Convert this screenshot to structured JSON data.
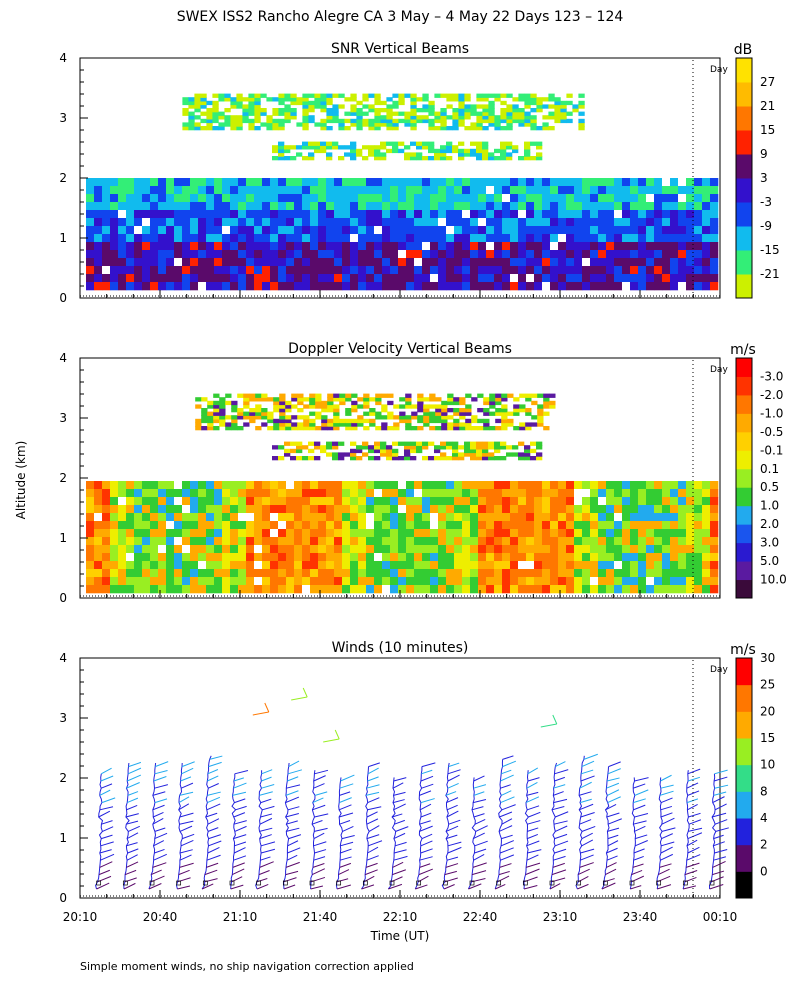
{
  "page": {
    "title": "SWEX ISS2 Rancho Alegre CA    3 May –   4 May 22 Days 123 – 124",
    "footnote": "Simple moment winds, no ship navigation correction applied",
    "day_marker_label": "Day"
  },
  "chart_data": [
    {
      "type": "heatmap",
      "title": "SNR Vertical Beams",
      "xlabel": "",
      "ylabel": "",
      "ylim": [
        0,
        4
      ],
      "y_ticks": [
        "0",
        "1",
        "2",
        "3",
        "4"
      ],
      "colorbar_unit": "dB",
      "colorbar_labels": [
        "-21",
        "-15",
        "-9",
        "-3",
        "3",
        "9",
        "15",
        "21",
        "27"
      ],
      "colorbar_colors": [
        "#ccf000",
        "#33ee77",
        "#11bbee",
        "#1144ee",
        "#3311cc",
        "#5a0a6a",
        "#ff2200",
        "#ff7700",
        "#ffbb00",
        "#ffe200"
      ],
      "layers": [
        {
          "altitude_km": [
            0.1,
            1.0
          ],
          "level": "strong"
        },
        {
          "altitude_km": [
            1.0,
            1.9
          ],
          "level": "moderate"
        },
        {
          "altitude_km": [
            2.3,
            2.6
          ],
          "level": "weak"
        },
        {
          "altitude_km": [
            2.8,
            3.4
          ],
          "level": "weak"
        }
      ]
    },
    {
      "type": "heatmap",
      "title": "Doppler Velocity Vertical Beams",
      "xlabel": "",
      "ylabel": "Altitude (km)",
      "ylim": [
        0,
        4
      ],
      "y_ticks": [
        "0",
        "1",
        "2",
        "3",
        "4"
      ],
      "colorbar_unit": "m/s",
      "colorbar_labels": [
        "10.0",
        "5.0",
        "3.0",
        "2.0",
        "1.0",
        "0.5",
        "0.1",
        "-0.1",
        "-0.5",
        "-1.0",
        "-2.0",
        "-3.0"
      ],
      "colorbar_colors": [
        "#3a0a3a",
        "#5a1aa0",
        "#2a1ad0",
        "#1a55ee",
        "#22aaee",
        "#33cc33",
        "#99ee22",
        "#eeee00",
        "#ffd000",
        "#ffaa00",
        "#ff7700",
        "#ff3300",
        "#ff0000"
      ]
    },
    {
      "type": "scatter",
      "title": "Winds (10 minutes)",
      "xlabel": "Time (UT)",
      "ylabel": "",
      "ylim": [
        0,
        4
      ],
      "y_ticks": [
        "0",
        "1",
        "2",
        "3",
        "4"
      ],
      "x_ticks": [
        "20:10",
        "20:40",
        "21:10",
        "21:40",
        "22:10",
        "22:40",
        "23:10",
        "23:40",
        "00:10"
      ],
      "colorbar_unit": "m/s",
      "colorbar_labels": [
        "0",
        "2",
        "4",
        "8",
        "10",
        "15",
        "20",
        "25",
        "30"
      ],
      "colorbar_colors": [
        "#000000",
        "#5a0a6a",
        "#2222dd",
        "#22aaee",
        "#33dd88",
        "#99ee22",
        "#ffaa00",
        "#ff7700",
        "#ff0000"
      ],
      "profile_times": [
        "20:17",
        "20:27",
        "20:37",
        "20:47",
        "20:57",
        "21:07",
        "21:17",
        "21:27",
        "21:37",
        "21:47",
        "21:57",
        "22:07",
        "22:17",
        "22:27",
        "22:37",
        "22:47",
        "22:57",
        "23:07",
        "23:17",
        "23:27",
        "23:37",
        "23:47",
        "23:57",
        "00:07"
      ]
    }
  ]
}
